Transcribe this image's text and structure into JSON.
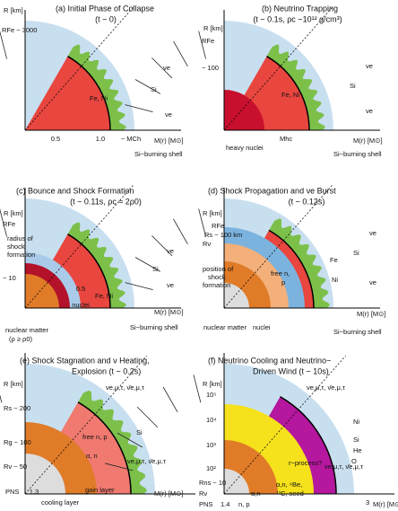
{
  "panels": [
    {
      "title": "(a)  Initial Phase of Collapse",
      "subtitle": "(t ~ 0)",
      "labels": [
        "R [km]",
        "RFe ~ 3000",
        "Fe, Ni",
        "Si",
        "νe",
        "νe",
        "0.5",
        "1.0",
        "~ MCh",
        "M(r) [M⊙]",
        "Si−burning shell"
      ]
    },
    {
      "title": "(b)  Neutrino Trapping",
      "subtitle": "(t ~ 0.1s, ρc ~10¹² g/cm³)",
      "labels": [
        "R [km]",
        "RFe",
        "~ 100",
        "Fe, Ni",
        "Si",
        "νe",
        "νe",
        "heavy nuclei",
        "Mhc",
        "M(r) [M⊙]",
        "Si−burning shell"
      ]
    },
    {
      "title": "(c)  Bounce and Shock Formation",
      "subtitle": "(t ~ 0.11s, ρc ≈ 2ρ0)",
      "labels": [
        "R [km]",
        "RFe",
        "radius of",
        "shock",
        "formation",
        "~ 10",
        "Fe, Ni",
        "Si",
        "νe",
        "νe",
        "nuclear matter",
        "(ρ ≥ ρ0)",
        "0.5",
        "nuclei",
        "M(r) [M⊙]",
        "Si−burning shell"
      ]
    },
    {
      "title": "(d)  Shock Propagation and νe Burst",
      "subtitle": "(t ~ 0.12s)",
      "labels": [
        "R [km]",
        "RFe",
        "Rs ~ 100 km",
        "Rν",
        "position of",
        "shock",
        "formation",
        "free n,",
        "p",
        "Fe",
        "Ni",
        "Si",
        "νe",
        "νe",
        "nuclear matter",
        "nuclei",
        "M(r) [M⊙]",
        "Si−burning shell"
      ]
    },
    {
      "title": "(e)  Shock Stagnation and ν Heating,",
      "subtitle": "Explosion  (t ~ 0.2s)",
      "labels": [
        "R [km]",
        "Rs ~ 200",
        "Rg ~ 100",
        "Rν ~ 50",
        "free n, p",
        "α, n",
        "Si",
        "νe,μ,τ, ν̄e,μ,τ",
        "νe,μ,τ, ν̄e,μ,τ",
        "PNS",
        "1.3",
        "cooling layer",
        "gain layer",
        "M(r) [M⊙]"
      ]
    },
    {
      "title": "(f)  Neutrino Cooling and Neutrino−",
      "subtitle": "Driven Wind  (t ~ 10s)",
      "labels": [
        "R [km]",
        "10⁵",
        "10⁴",
        "10³",
        "10²",
        "Rns ~ 10",
        "Rν",
        "Ni",
        "Si",
        "He",
        "O",
        "r−process?",
        "νe,μ,τ, ν̄e,μ,τ",
        "νe,μ,τ, ν̄e,μ,τ",
        "PNS",
        "1.4",
        "n, p",
        "α,n",
        "α,n, ⁹Be,",
        "¹²C, seed",
        "3",
        "M(r) [M⊙]"
      ]
    }
  ]
}
